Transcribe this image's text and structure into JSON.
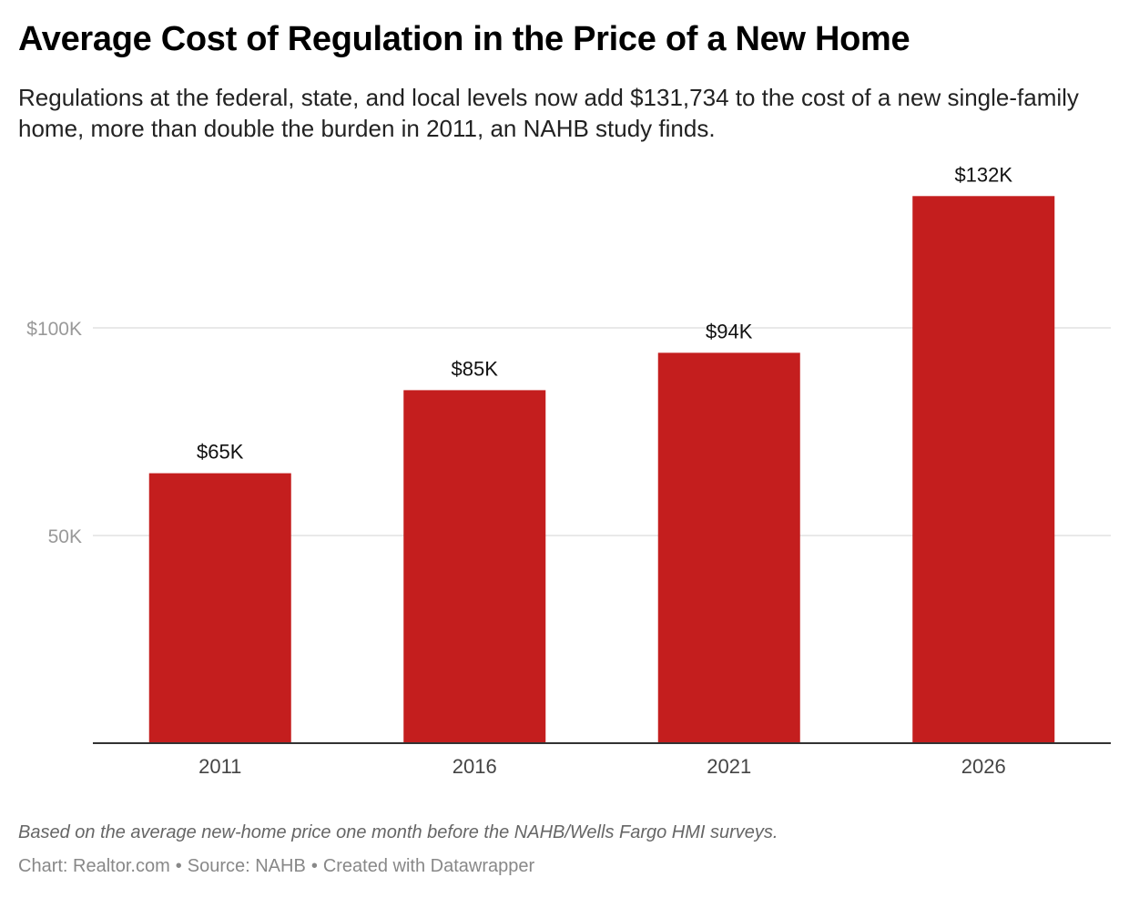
{
  "title": "Average Cost of Regulation in the Price of a New Home",
  "subtitle": "Regulations at the federal, state, and local levels now add $131,734 to the cost of a new single-family home, more than double the burden in 2011, an NAHB study finds.",
  "note": "Based on the average new-home price one month before the NAHB/Wells Fargo HMI surveys.",
  "credits": {
    "chart": "Chart: Realtor.com",
    "source": "Source: NAHB",
    "made_with": "Created with Datawrapper",
    "separator": "•"
  },
  "colors": {
    "bar": "#c41e1e",
    "grid": "#e2e2e2",
    "axis": "#333333"
  },
  "chart_data": {
    "type": "bar",
    "categories": [
      "2011",
      "2016",
      "2021",
      "2026"
    ],
    "values": [
      65000,
      85000,
      94000,
      131734
    ],
    "data_labels": [
      "$65K",
      "$85K",
      "$94K",
      "$132K"
    ],
    "y_ticks": [
      {
        "value": 50000,
        "label": "50K"
      },
      {
        "value": 100000,
        "label": "$100K"
      }
    ],
    "ylim": [
      0,
      140000
    ],
    "grid": true,
    "legend": "none"
  }
}
